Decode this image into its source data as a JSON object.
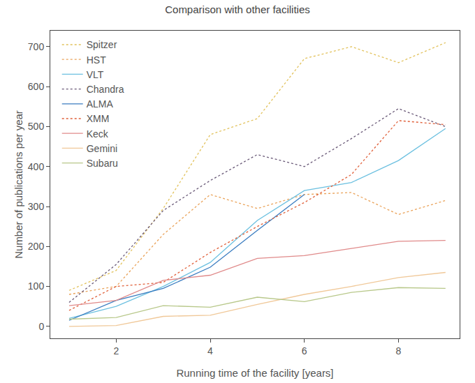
{
  "chart_data": {
    "type": "line",
    "title": "Comparison with other facilities",
    "x_label": "Running time of the facility [years]",
    "y_label": "Number of publications per year",
    "x": [
      1,
      2,
      3,
      4,
      5,
      6,
      7,
      8,
      9
    ],
    "xlim": [
      0.6,
      9.3
    ],
    "xticks": [
      2,
      4,
      6,
      8
    ],
    "ylim": [
      -30,
      740
    ],
    "yticks": [
      0,
      100,
      200,
      300,
      400,
      500,
      600,
      700
    ],
    "grid": false,
    "legend": "upper left",
    "series": [
      {
        "name": "Spitzer",
        "color": "#e2c25c",
        "line_style": "dotted",
        "values": [
          90,
          140,
          295,
          480,
          520,
          670,
          700,
          660,
          710
        ]
      },
      {
        "name": "HST",
        "color": "#eaa35a",
        "line_style": "dotted",
        "values": [
          80,
          100,
          230,
          330,
          295,
          330,
          335,
          280,
          315
        ]
      },
      {
        "name": "VLT",
        "color": "#6cc0e0",
        "line_style": "solid",
        "values": [
          20,
          50,
          100,
          160,
          265,
          340,
          360,
          415,
          495
        ]
      },
      {
        "name": "Chandra",
        "color": "#6a5a78",
        "line_style": "dotted",
        "values": [
          60,
          155,
          290,
          365,
          430,
          400,
          470,
          545,
          500
        ]
      },
      {
        "name": "ALMA",
        "color": "#3a7cc0",
        "line_style": "solid",
        "values": [
          15,
          65,
          95,
          148,
          240,
          330,
          null,
          null,
          null
        ]
      },
      {
        "name": "XMM",
        "color": "#e0603a",
        "line_style": "dotted",
        "values": [
          40,
          100,
          110,
          185,
          250,
          310,
          380,
          515,
          505
        ]
      },
      {
        "name": "Keck",
        "color": "#e08a8a",
        "line_style": "solid",
        "values": [
          52,
          65,
          115,
          128,
          170,
          177,
          195,
          213,
          215
        ]
      },
      {
        "name": "Gemini",
        "color": "#f0c898",
        "line_style": "solid",
        "values": [
          0,
          2,
          25,
          28,
          55,
          80,
          100,
          122,
          135
        ]
      },
      {
        "name": "Subaru",
        "color": "#b8c88a",
        "line_style": "solid",
        "values": [
          18,
          22,
          52,
          48,
          73,
          62,
          85,
          97,
          95
        ]
      }
    ]
  }
}
